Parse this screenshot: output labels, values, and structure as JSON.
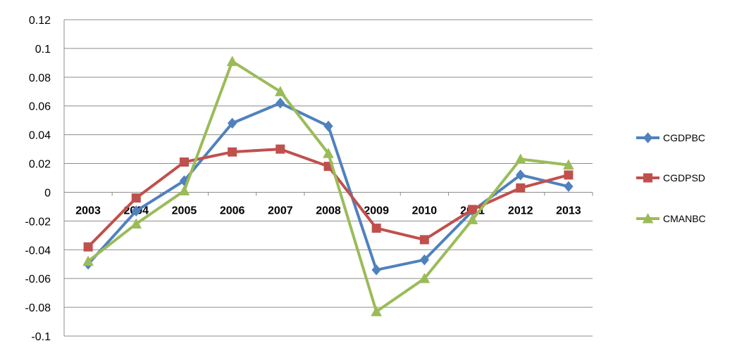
{
  "chart_data": {
    "type": "line",
    "title": "",
    "xlabel": "",
    "ylabel": "",
    "categories": [
      "2003",
      "2004",
      "2005",
      "2006",
      "2007",
      "2008",
      "2009",
      "2010",
      "2011",
      "2012",
      "2013"
    ],
    "ylim": [
      -0.1,
      0.12
    ],
    "yticks": [
      -0.1,
      -0.08,
      -0.06,
      -0.04,
      -0.02,
      0,
      0.02,
      0.04,
      0.06,
      0.08,
      0.1,
      0.12
    ],
    "ytick_labels": [
      "-0.1",
      "-0.08",
      "-0.06",
      "-0.04",
      "-0.02",
      "0",
      "0.02",
      "0.04",
      "0.06",
      "0.08",
      "0.1",
      "0.12"
    ],
    "grid": true,
    "legend_position": "right",
    "series": [
      {
        "name": "CGDPBC",
        "color": "#4F81BD",
        "marker": "diamond",
        "values": [
          -0.05,
          -0.013,
          0.008,
          0.048,
          0.062,
          0.046,
          -0.054,
          -0.047,
          -0.013,
          0.012,
          0.004
        ]
      },
      {
        "name": "CGDPSD",
        "color": "#C0504D",
        "marker": "square",
        "values": [
          -0.038,
          -0.004,
          0.021,
          0.028,
          0.03,
          0.018,
          -0.025,
          -0.033,
          -0.012,
          0.003,
          0.012
        ]
      },
      {
        "name": "CMANBC",
        "color": "#9BBB59",
        "marker": "triangle",
        "values": [
          -0.048,
          -0.022,
          0.001,
          0.091,
          0.07,
          0.027,
          -0.083,
          -0.06,
          -0.019,
          0.023,
          0.019
        ]
      }
    ]
  }
}
